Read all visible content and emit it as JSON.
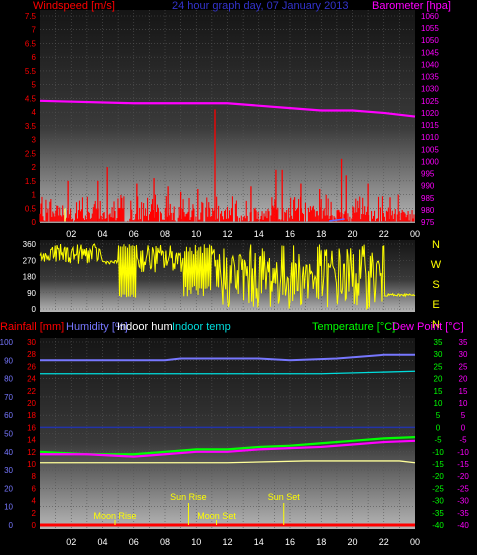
{
  "colors": {
    "wind": "#ff0000",
    "baro": "#ff00ff",
    "title": "#3333cc",
    "dir": "#ffff00",
    "rain": "#ff0000",
    "humidity": "#7777ff",
    "indoor_hum": "#ffffff",
    "indoor_temp": "#00dddd",
    "temperature": "#00ff00",
    "dew_point": "#ff00ff",
    "yellow": "#ffff00"
  },
  "chart_data": [
    {
      "type": "line",
      "title": "24 hour graph day,  07 January 2013",
      "left_axis_label": "Windspeed [m/s]",
      "right_axis_label": "Barometer [hpa]",
      "x_ticks": [
        "02",
        "04",
        "06",
        "08",
        "10",
        "12",
        "14",
        "16",
        "18",
        "20",
        "22",
        "00"
      ],
      "left_ticks": [
        "0",
        "0.5",
        "1",
        "1.5",
        "2",
        "2.5",
        "3",
        "3.5",
        "4",
        "4.5",
        "5",
        "5.5",
        "6",
        "6.5",
        "7",
        "7.5"
      ],
      "left_range": [
        0,
        7.5
      ],
      "right_ticks": [
        "975",
        "980",
        "985",
        "990",
        "995",
        "1000",
        "1005",
        "1010",
        "1015",
        "1020",
        "1025",
        "1030",
        "1035",
        "1040",
        "1045",
        "1050",
        "1055",
        "1060"
      ],
      "right_range": [
        975,
        1060
      ],
      "barometer": {
        "x": [
          0,
          6,
          12,
          14,
          16,
          18,
          20,
          22,
          24
        ],
        "y": [
          1025,
          1024,
          1024,
          1023,
          1022,
          1021,
          1021,
          1020,
          1018.5
        ]
      },
      "wind_gust_spikes": [
        {
          "x": 1.8,
          "y": 1.5
        },
        {
          "x": 3.7,
          "y": 1.5
        },
        {
          "x": 4.3,
          "y": 2.0
        },
        {
          "x": 6.2,
          "y": 1.4
        },
        {
          "x": 7.3,
          "y": 1.6
        },
        {
          "x": 8.2,
          "y": 1.3
        },
        {
          "x": 9.0,
          "y": 1.1
        },
        {
          "x": 10.1,
          "y": 1.2
        },
        {
          "x": 11.2,
          "y": 4.1
        },
        {
          "x": 13.5,
          "y": 1.3
        },
        {
          "x": 15.1,
          "y": 1.9
        },
        {
          "x": 15.5,
          "y": 1.9
        },
        {
          "x": 16.7,
          "y": 1.4
        },
        {
          "x": 17.9,
          "y": 1.2
        },
        {
          "x": 19.3,
          "y": 2.3
        },
        {
          "x": 19.6,
          "y": 1.7
        },
        {
          "x": 21.0,
          "y": 1.4
        },
        {
          "x": 22.4,
          "y": 0.9
        }
      ]
    },
    {
      "type": "scatter",
      "left_axis_label": "",
      "left_ticks": [
        "0",
        "90",
        "180",
        "270",
        "360"
      ],
      "left_range": [
        0,
        360
      ],
      "compass": [
        "N",
        "W",
        "S",
        "E",
        "N"
      ]
    },
    {
      "type": "line",
      "labels": {
        "rainfall": "Rainfall [mm]",
        "humidity": "Humidity [%]",
        "indoor_hum": "Indoor hum",
        "indoor_temp": "Indoor temp",
        "temperature": "Temperature [°C]",
        "dew_point": "Dew Point [°C]"
      },
      "left1_ticks": [
        "0",
        "10",
        "20",
        "30",
        "40",
        "50",
        "60",
        "70",
        "80",
        "90",
        "100"
      ],
      "left2_ticks": [
        "0",
        "2",
        "4",
        "6",
        "8",
        "10",
        "12",
        "14",
        "16",
        "18",
        "20",
        "22",
        "24",
        "26",
        "28",
        "30"
      ],
      "right_ticks": [
        "35",
        "30",
        "25",
        "20",
        "15",
        "10",
        "5",
        "0",
        "-5",
        "-10",
        "-15",
        "-20",
        "-25",
        "-30",
        "-35",
        "-40"
      ],
      "temp_range": [
        -40,
        35
      ],
      "humidity_range": [
        0,
        100
      ],
      "humidity": {
        "x": [
          0,
          8,
          9,
          14,
          16,
          19,
          22,
          24
        ],
        "y": [
          90,
          90,
          91,
          91,
          90,
          91,
          93,
          93
        ]
      },
      "indoor_temp": {
        "x": [
          0,
          6,
          12,
          18,
          24
        ],
        "y": [
          22,
          22,
          22,
          22,
          23
        ]
      },
      "indoor_hum": {
        "x": [
          0,
          6,
          12,
          17,
          18,
          23,
          24
        ],
        "y": [
          34,
          34,
          34,
          35,
          35,
          35,
          34
        ]
      },
      "temperature": {
        "x": [
          0,
          3,
          6,
          8,
          10,
          12,
          14,
          16,
          18,
          20,
          22,
          24
        ],
        "y": [
          -10,
          -11,
          -11,
          -10,
          -9,
          -9,
          -8,
          -7.5,
          -6.5,
          -5.5,
          -4.5,
          -4
        ]
      },
      "dew_point": {
        "x": [
          0,
          3,
          6,
          8,
          10,
          12,
          14,
          16,
          18,
          20,
          22,
          24
        ],
        "y": [
          -11,
          -11,
          -12,
          -11,
          -10,
          -10,
          -9,
          -8.5,
          -8,
          -7,
          -6,
          -5.5
        ]
      },
      "dark_blue_line": {
        "y": 0
      },
      "events": [
        {
          "label": "Moon Rise",
          "x": 4.8
        },
        {
          "label": "Sun Rise",
          "x": 9.5
        },
        {
          "label": "Moon Set",
          "x": 11.3
        },
        {
          "label": "Sun Set",
          "x": 15.6
        }
      ]
    }
  ]
}
